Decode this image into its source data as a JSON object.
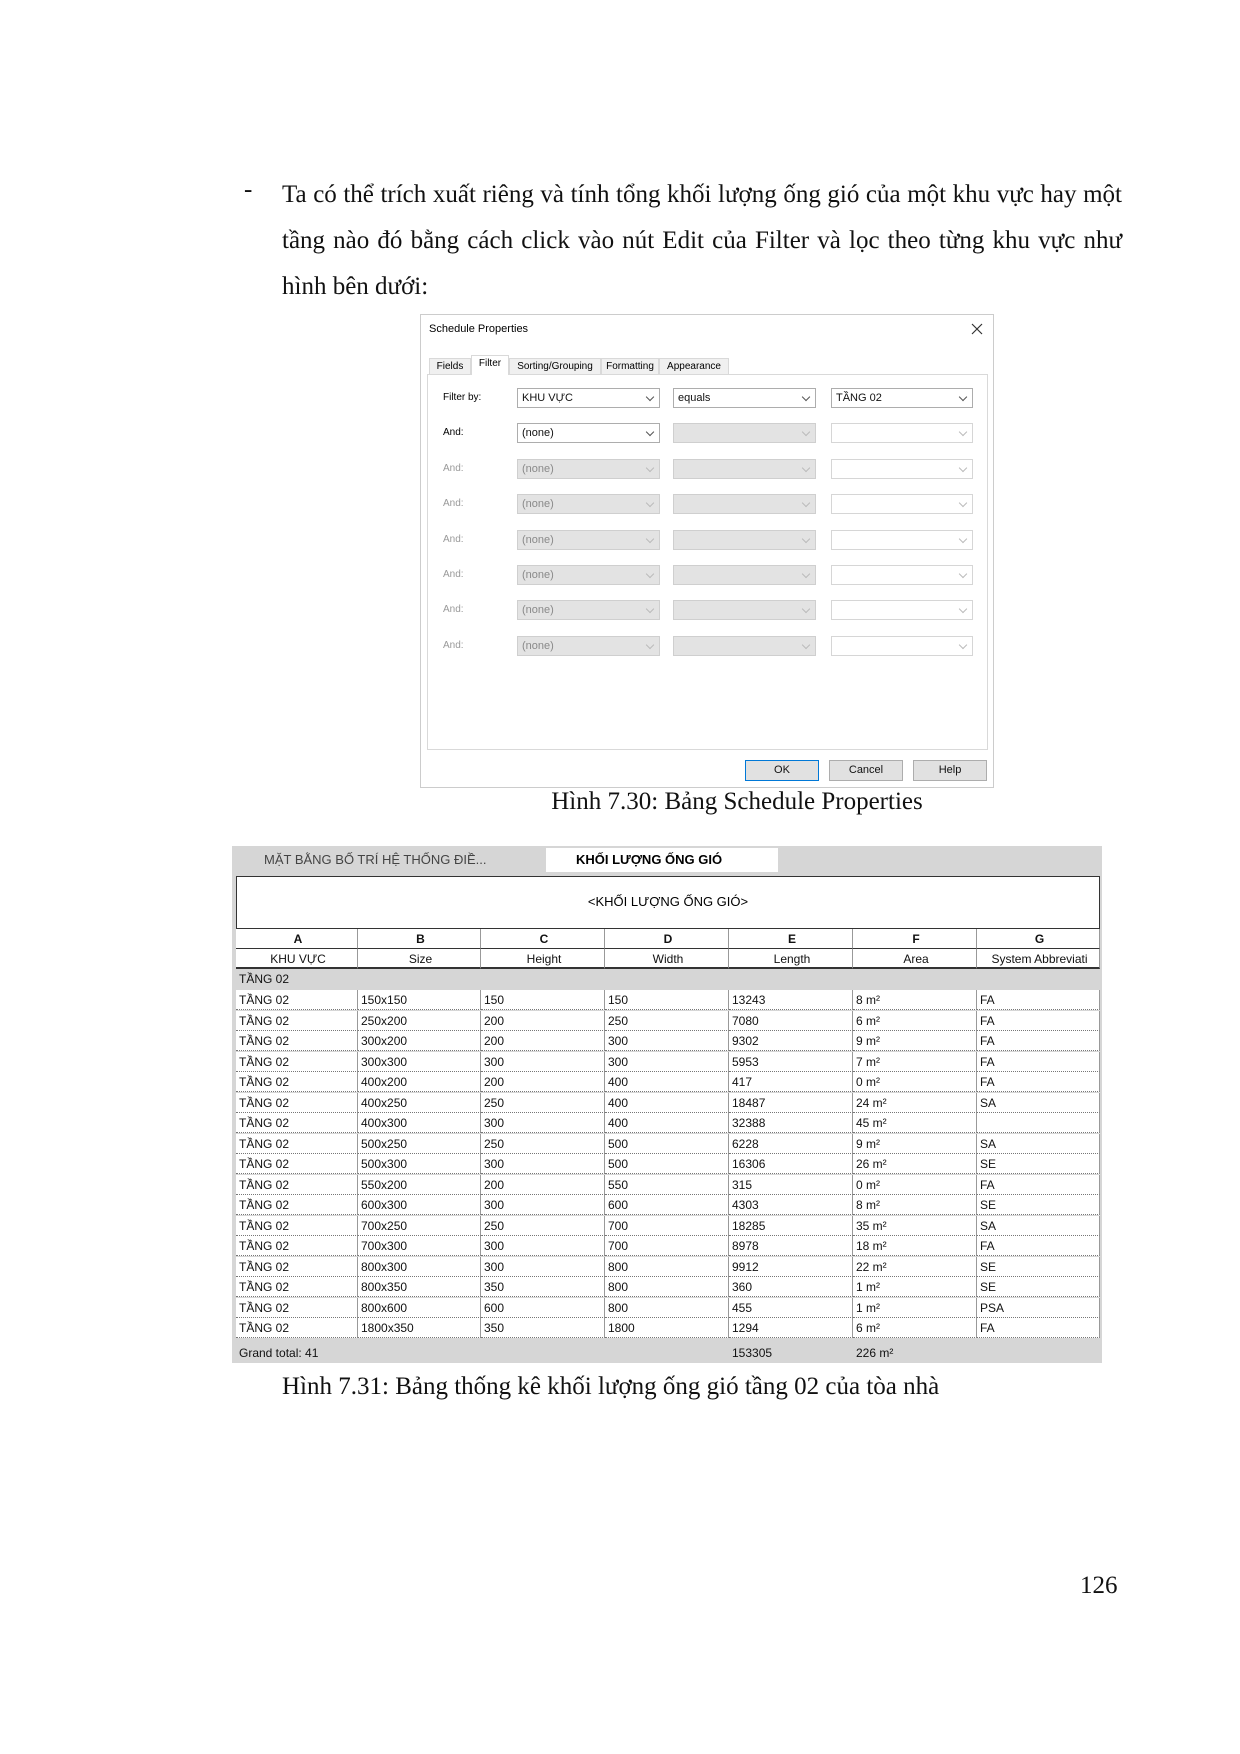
{
  "paragraph": {
    "bullet": "-",
    "text": "Ta có thể trích xuất riêng và tính tổng khối lượng ống gió của một khu vực hay một tầng nào đó bằng cách click vào nút Edit của Filter và lọc theo từng khu vực như hình bên dưới:"
  },
  "dialog": {
    "title": "Schedule Properties",
    "tabs": [
      "Fields",
      "Filter",
      "Sorting/Grouping",
      "Formatting",
      "Appearance"
    ],
    "filter_rows": [
      {
        "label": "Filter by:",
        "field": "KHU VỰC",
        "condition": "equals",
        "value": "TẦNG 02"
      },
      {
        "label": "And:",
        "field": "(none)",
        "condition": null,
        "value": null
      },
      {
        "label": "And:",
        "field": "(none)",
        "condition": null,
        "value": null
      },
      {
        "label": "And:",
        "field": "(none)",
        "condition": null,
        "value": null
      },
      {
        "label": "And:",
        "field": "(none)",
        "condition": null,
        "value": null
      },
      {
        "label": "And:",
        "field": "(none)",
        "condition": null,
        "value": null
      },
      {
        "label": "And:",
        "field": "(none)",
        "condition": null,
        "value": null
      },
      {
        "label": "And:",
        "field": "(none)",
        "condition": null,
        "value": null
      }
    ],
    "buttons": [
      "OK",
      "Cancel",
      "Help"
    ]
  },
  "caption1": "Hình 7.30: Bảng Schedule Properties",
  "schedule": {
    "tabs": [
      "MẶT BẰNG BỐ TRÍ HỆ THỐNG ĐIỀ...",
      "KHỐI LƯỢNG ỐNG GIÓ"
    ],
    "title": "<KHỐI LƯỢNG ỐNG GIÓ>",
    "column_letters": [
      "A",
      "B",
      "C",
      "D",
      "E",
      "F",
      "G"
    ],
    "headers": [
      "KHU VỰC",
      "Size",
      "Height",
      "Width",
      "Length",
      "Area",
      "System Abbreviati"
    ],
    "group": "TẦNG 02",
    "rows": [
      [
        "TẦNG 02",
        "150x150",
        "150",
        "150",
        "13243",
        "8 m²",
        "FA"
      ],
      [
        "TẦNG 02",
        "250x200",
        "200",
        "250",
        "7080",
        "6 m²",
        "FA"
      ],
      [
        "TẦNG 02",
        "300x200",
        "200",
        "300",
        "9302",
        "9 m²",
        "FA"
      ],
      [
        "TẦNG 02",
        "300x300",
        "300",
        "300",
        "5953",
        "7 m²",
        "FA"
      ],
      [
        "TẦNG 02",
        "400x200",
        "200",
        "400",
        "417",
        "0 m²",
        "FA"
      ],
      [
        "TẦNG 02",
        "400x250",
        "250",
        "400",
        "18487",
        "24 m²",
        "SA"
      ],
      [
        "TẦNG 02",
        "400x300",
        "300",
        "400",
        "32388",
        "45 m²",
        null
      ],
      [
        "TẦNG 02",
        "500x250",
        "250",
        "500",
        "6228",
        "9 m²",
        "SA"
      ],
      [
        "TẦNG 02",
        "500x300",
        "300",
        "500",
        "16306",
        "26 m²",
        "SE"
      ],
      [
        "TẦNG 02",
        "550x200",
        "200",
        "550",
        "315",
        "0 m²",
        "FA"
      ],
      [
        "TẦNG 02",
        "600x300",
        "300",
        "600",
        "4303",
        "8 m²",
        "SE"
      ],
      [
        "TẦNG 02",
        "700x250",
        "250",
        "700",
        "18285",
        "35 m²",
        "SA"
      ],
      [
        "TẦNG 02",
        "700x300",
        "300",
        "700",
        "8978",
        "18 m²",
        "FA"
      ],
      [
        "TẦNG 02",
        "800x300",
        "300",
        "800",
        "9912",
        "22 m²",
        "SE"
      ],
      [
        "TẦNG 02",
        "800x350",
        "350",
        "800",
        "360",
        "1 m²",
        "SE"
      ],
      [
        "TẦNG 02",
        "800x600",
        "600",
        "800",
        "455",
        "1 m²",
        "PSA"
      ],
      [
        "TẦNG 02",
        "1800x350",
        "350",
        "1800",
        "1294",
        "6 m²",
        "FA"
      ]
    ],
    "grand_total": {
      "label": "Grand total: 41",
      "length": "153305",
      "area": "226 m²"
    }
  },
  "caption2": "Hình 7.31: Bảng thống kê khối lượng ống gió tầng 02 của tòa nhà",
  "page_number": "126"
}
